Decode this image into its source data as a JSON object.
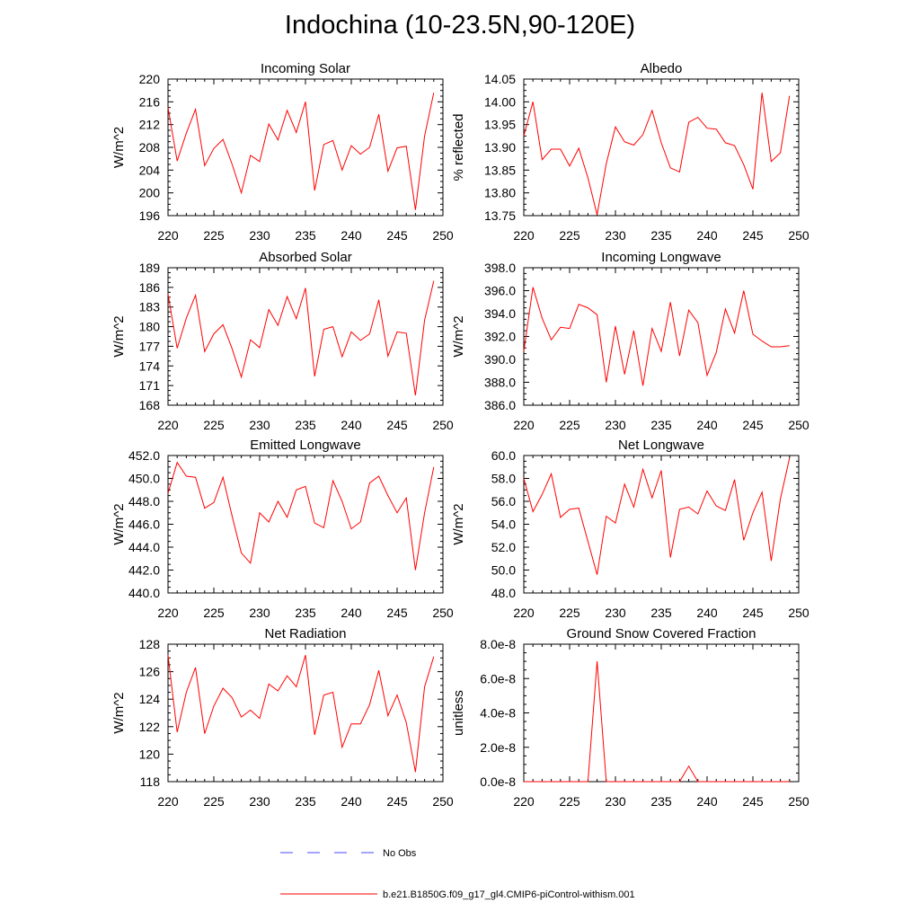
{
  "page_title": "Indochina (10-23.5N,90-120E)",
  "legend": {
    "obs": {
      "label": "No Obs",
      "color": "#4a4aff"
    },
    "model": {
      "label": "b.e21.B1850G.f09_g17_gl4.CMIP6-piControl-withism.001",
      "color": "#ff0000"
    }
  },
  "chart_data": [
    {
      "type": "line",
      "title": "Incoming Solar",
      "ylabel": "W/m^2",
      "xlim": [
        220,
        250
      ],
      "ylim": [
        196,
        220
      ],
      "xticks": [
        220,
        225,
        230,
        235,
        240,
        245,
        250
      ],
      "yticks": [
        "196",
        "200",
        "204",
        "208",
        "212",
        "216",
        "220"
      ],
      "x": [
        220,
        221,
        222,
        223,
        224,
        225,
        226,
        227,
        228,
        229,
        230,
        231,
        232,
        233,
        234,
        235,
        236,
        237,
        238,
        239,
        240,
        241,
        242,
        243,
        244,
        245,
        246,
        247,
        248,
        249
      ],
      "series": [
        {
          "color": "#ff0000",
          "values": [
            215.0,
            205.6,
            210.5,
            214.7,
            204.8,
            207.8,
            209.4,
            205.0,
            200.0,
            206.6,
            205.5,
            212.1,
            209.3,
            214.5,
            210.6,
            216.0,
            200.4,
            208.5,
            209.2,
            204.0,
            208.3,
            206.8,
            208.0,
            213.8,
            203.8,
            207.9,
            208.2,
            197.0,
            210.0,
            217.6
          ]
        }
      ]
    },
    {
      "type": "line",
      "title": "Albedo",
      "ylabel": "% reflected",
      "xlim": [
        220,
        250
      ],
      "ylim": [
        13.75,
        14.05
      ],
      "xticks": [
        220,
        225,
        230,
        235,
        240,
        245,
        250
      ],
      "yticks": [
        "13.75",
        "13.80",
        "13.85",
        "13.90",
        "13.95",
        "14.00",
        "14.05"
      ],
      "x": [
        220,
        221,
        222,
        223,
        224,
        225,
        226,
        227,
        228,
        229,
        230,
        231,
        232,
        233,
        234,
        235,
        236,
        237,
        238,
        239,
        240,
        241,
        242,
        243,
        244,
        245,
        246,
        247,
        248,
        249
      ],
      "series": [
        {
          "color": "#ff0000",
          "values": [
            13.925,
            14.0,
            13.873,
            13.896,
            13.896,
            13.859,
            13.898,
            13.833,
            13.752,
            13.864,
            13.945,
            13.912,
            13.905,
            13.928,
            13.981,
            13.91,
            13.855,
            13.846,
            13.955,
            13.966,
            13.942,
            13.94,
            13.91,
            13.904,
            13.862,
            13.808,
            14.02,
            13.869,
            13.888,
            14.013
          ]
        }
      ]
    },
    {
      "type": "line",
      "title": "Absorbed Solar",
      "ylabel": "W/m^2",
      "xlim": [
        220,
        250
      ],
      "ylim": [
        168,
        189
      ],
      "xticks": [
        220,
        225,
        230,
        235,
        240,
        245,
        250
      ],
      "yticks": [
        "168",
        "171",
        "174",
        "177",
        "180",
        "183",
        "186",
        "189"
      ],
      "x": [
        220,
        221,
        222,
        223,
        224,
        225,
        226,
        227,
        228,
        229,
        230,
        231,
        232,
        233,
        234,
        235,
        236,
        237,
        238,
        239,
        240,
        241,
        242,
        243,
        244,
        245,
        246,
        247,
        248,
        249
      ],
      "series": [
        {
          "color": "#ff0000",
          "values": [
            185.0,
            176.7,
            181.3,
            184.8,
            176.2,
            178.9,
            180.3,
            176.6,
            172.3,
            178.0,
            176.8,
            182.6,
            180.2,
            184.6,
            181.2,
            185.9,
            172.4,
            179.6,
            180.0,
            175.4,
            179.2,
            177.9,
            178.9,
            184.1,
            175.5,
            179.2,
            179.0,
            169.5,
            181.0,
            187.0
          ]
        }
      ]
    },
    {
      "type": "line",
      "title": "Incoming Longwave",
      "ylabel": "W/m^2",
      "xlim": [
        220,
        250
      ],
      "ylim": [
        386.0,
        398.0
      ],
      "xticks": [
        220,
        225,
        230,
        235,
        240,
        245,
        250
      ],
      "yticks": [
        "386.0",
        "388.0",
        "390.0",
        "392.0",
        "394.0",
        "396.0",
        "398.0"
      ],
      "x": [
        220,
        221,
        222,
        223,
        224,
        225,
        226,
        227,
        228,
        229,
        230,
        231,
        232,
        233,
        234,
        235,
        236,
        237,
        238,
        239,
        240,
        241,
        242,
        243,
        244,
        245,
        246,
        247,
        248,
        249
      ],
      "series": [
        {
          "color": "#ff0000",
          "values": [
            390.7,
            396.3,
            393.6,
            391.7,
            392.8,
            392.7,
            394.8,
            394.5,
            393.9,
            388.0,
            392.9,
            388.7,
            392.5,
            387.7,
            392.7,
            390.7,
            395.0,
            390.3,
            394.3,
            393.2,
            388.6,
            390.6,
            394.4,
            392.3,
            396.0,
            392.2,
            391.6,
            391.1,
            391.1,
            391.2
          ]
        }
      ]
    },
    {
      "type": "line",
      "title": "Emitted Longwave",
      "ylabel": "W/m^2",
      "xlim": [
        220,
        250
      ],
      "ylim": [
        440.0,
        452.0
      ],
      "xticks": [
        220,
        225,
        230,
        235,
        240,
        245,
        250
      ],
      "yticks": [
        "440.0",
        "442.0",
        "444.0",
        "446.0",
        "448.0",
        "450.0",
        "452.0"
      ],
      "x": [
        220,
        221,
        222,
        223,
        224,
        225,
        226,
        227,
        228,
        229,
        230,
        231,
        232,
        233,
        234,
        235,
        236,
        237,
        238,
        239,
        240,
        241,
        242,
        243,
        244,
        245,
        246,
        247,
        248,
        249
      ],
      "series": [
        {
          "color": "#ff0000",
          "values": [
            448.7,
            451.4,
            450.2,
            450.1,
            447.4,
            447.9,
            450.1,
            446.7,
            443.5,
            442.6,
            447.0,
            446.2,
            448.0,
            446.6,
            449.0,
            449.3,
            446.1,
            445.7,
            449.8,
            448.0,
            445.6,
            446.2,
            449.6,
            450.2,
            448.5,
            447.0,
            448.3,
            442.0,
            447.0,
            451.0
          ]
        }
      ]
    },
    {
      "type": "line",
      "title": "Net Longwave",
      "ylabel": "W/m^2",
      "xlim": [
        220,
        250
      ],
      "ylim": [
        48.0,
        60.0
      ],
      "xticks": [
        220,
        225,
        230,
        235,
        240,
        245,
        250
      ],
      "yticks": [
        "48.0",
        "50.0",
        "52.0",
        "54.0",
        "56.0",
        "58.0",
        "60.0"
      ],
      "x": [
        220,
        221,
        222,
        223,
        224,
        225,
        226,
        227,
        228,
        229,
        230,
        231,
        232,
        233,
        234,
        235,
        236,
        237,
        238,
        239,
        240,
        241,
        242,
        243,
        244,
        245,
        246,
        247,
        248,
        249
      ],
      "series": [
        {
          "color": "#ff0000",
          "values": [
            58.0,
            55.1,
            56.6,
            58.4,
            54.6,
            55.3,
            55.4,
            52.5,
            49.6,
            54.7,
            54.1,
            57.5,
            55.5,
            58.8,
            56.3,
            58.7,
            51.1,
            55.3,
            55.5,
            54.9,
            56.9,
            55.6,
            55.2,
            57.9,
            52.6,
            55.0,
            56.8,
            50.8,
            56.2,
            59.8
          ]
        }
      ]
    },
    {
      "type": "line",
      "title": "Net Radiation",
      "ylabel": "W/m^2",
      "xlim": [
        220,
        250
      ],
      "ylim": [
        118,
        128
      ],
      "xticks": [
        220,
        225,
        230,
        235,
        240,
        245,
        250
      ],
      "yticks": [
        "118",
        "120",
        "122",
        "124",
        "126",
        "128"
      ],
      "x": [
        220,
        221,
        222,
        223,
        224,
        225,
        226,
        227,
        228,
        229,
        230,
        231,
        232,
        233,
        234,
        235,
        236,
        237,
        238,
        239,
        240,
        241,
        242,
        243,
        244,
        245,
        246,
        247,
        248,
        249
      ],
      "series": [
        {
          "color": "#ff0000",
          "values": [
            127.2,
            121.6,
            124.5,
            126.3,
            121.5,
            123.5,
            124.8,
            124.1,
            122.7,
            123.2,
            122.6,
            125.1,
            124.6,
            125.7,
            124.9,
            127.2,
            121.4,
            124.3,
            124.5,
            120.5,
            122.2,
            122.2,
            123.6,
            126.1,
            122.8,
            124.3,
            122.3,
            118.7,
            124.9,
            127.1
          ]
        }
      ]
    },
    {
      "type": "line",
      "title": "Ground Snow Covered Fraction",
      "ylabel": "unitless",
      "xlim": [
        220,
        250
      ],
      "ylim": [
        0,
        8e-08
      ],
      "xticks": [
        220,
        225,
        230,
        235,
        240,
        245,
        250
      ],
      "yticks": [
        "0.0e-8",
        "2.0e-8",
        "4.0e-8",
        "6.0e-8",
        "8.0e-8"
      ],
      "x": [
        220,
        221,
        222,
        223,
        224,
        225,
        226,
        227,
        228,
        229,
        230,
        231,
        232,
        233,
        234,
        235,
        236,
        237,
        238,
        239,
        240,
        241,
        242,
        243,
        244,
        245,
        246,
        247,
        248,
        249
      ],
      "series": [
        {
          "color": "#ff0000",
          "values": [
            0,
            0,
            0,
            0,
            0,
            0,
            0,
            0,
            7e-08,
            0,
            0,
            0,
            0,
            0,
            0,
            0,
            0,
            0,
            9e-09,
            0,
            0,
            0,
            0,
            0,
            0,
            0,
            0,
            0,
            0,
            0
          ]
        }
      ]
    }
  ]
}
